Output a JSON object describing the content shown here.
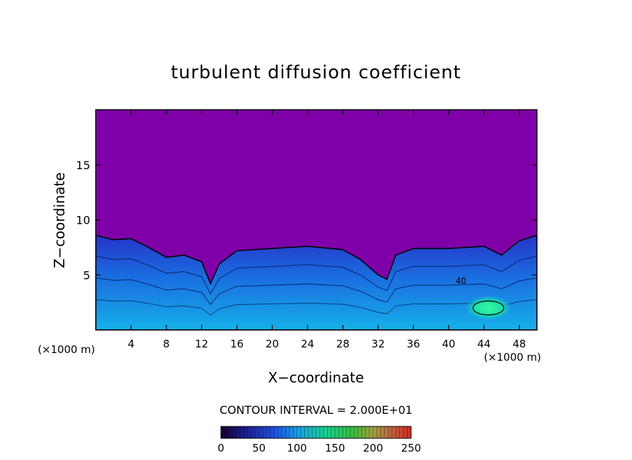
{
  "chart_data": {
    "type": "heatmap",
    "title": "turbulent diffusion coefficient",
    "xlabel": "X−coordinate",
    "ylabel": "Z−coordinate",
    "x_unit_left": "(×1000 m)",
    "x_unit_right": "(×1000 m)",
    "xlim": [
      0,
      50
    ],
    "ylim": [
      0,
      20
    ],
    "x_ticks": [
      4,
      8,
      12,
      16,
      20,
      24,
      28,
      32,
      36,
      40,
      44,
      48
    ],
    "y_ticks": [
      5,
      10,
      15
    ],
    "contour_interval_text": "CONTOUR INTERVAL = 2.000E+01",
    "contour_label": "40",
    "colorbar": {
      "min": 0,
      "max": 250,
      "ticks": [
        0,
        50,
        100,
        150,
        200,
        250
      ]
    },
    "field": {
      "background_value": 5,
      "mixed_layer_top": [
        [
          0,
          8.6
        ],
        [
          2,
          8.2
        ],
        [
          4,
          8.3
        ],
        [
          6,
          7.5
        ],
        [
          8,
          6.6
        ],
        [
          10,
          6.8
        ],
        [
          12,
          6.2
        ],
        [
          13,
          4.2
        ],
        [
          14,
          6.0
        ],
        [
          16,
          7.2
        ],
        [
          20,
          7.4
        ],
        [
          24,
          7.6
        ],
        [
          28,
          7.3
        ],
        [
          30,
          6.4
        ],
        [
          32,
          5.0
        ],
        [
          33,
          4.6
        ],
        [
          34,
          6.8
        ],
        [
          36,
          7.4
        ],
        [
          40,
          7.4
        ],
        [
          44,
          7.6
        ],
        [
          46,
          6.8
        ],
        [
          48,
          8.1
        ],
        [
          50,
          8.6
        ]
      ],
      "hotspot": {
        "x": 44.5,
        "z": 2.0,
        "value": 120
      }
    },
    "colors": {
      "background": "#7f00a8",
      "low": "#2a1ca8",
      "mid": "#1e90ff",
      "high": "#00e8a0",
      "frame": "#000000"
    }
  }
}
